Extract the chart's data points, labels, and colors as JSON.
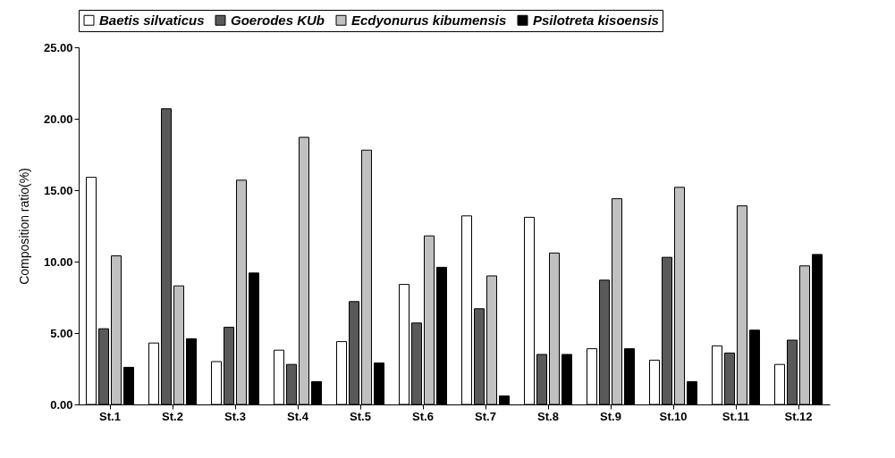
{
  "chart_data": {
    "type": "bar",
    "ylabel": "Composition ratio(%)",
    "categories": [
      "St.1",
      "St.2",
      "St.3",
      "St.4",
      "St.5",
      "St.6",
      "St.7",
      "St.8",
      "St.9",
      "St.10",
      "St.11",
      "St.12"
    ],
    "series": [
      {
        "name": "Baetis silvaticus",
        "color": "#ffffff",
        "values": [
          15.9,
          4.3,
          3.0,
          3.8,
          4.4,
          8.4,
          13.2,
          13.1,
          3.9,
          3.1,
          4.1,
          2.8
        ]
      },
      {
        "name": "Goerodes KUb",
        "color": "#595959",
        "values": [
          5.3,
          20.7,
          5.4,
          2.8,
          7.2,
          5.7,
          6.7,
          3.5,
          8.7,
          10.3,
          3.6,
          4.5
        ]
      },
      {
        "name": "Ecdyonurus kibumensis",
        "color": "#c0c0c0",
        "values": [
          10.4,
          8.3,
          15.7,
          18.7,
          17.8,
          11.8,
          9.0,
          10.6,
          14.4,
          15.2,
          13.9,
          9.7
        ]
      },
      {
        "name": "Psilotreta kisoensis",
        "color": "#000000",
        "values": [
          2.6,
          4.6,
          9.2,
          1.6,
          2.9,
          9.6,
          0.6,
          3.5,
          3.9,
          1.6,
          5.2,
          10.5
        ]
      }
    ],
    "ylim": [
      0,
      25
    ],
    "yticks": [
      {
        "value": 0,
        "label": "0.00"
      },
      {
        "value": 5,
        "label": "5.00"
      },
      {
        "value": 10,
        "label": "10.00"
      },
      {
        "value": 15,
        "label": "15.00"
      },
      {
        "value": 20,
        "label": "20.00"
      },
      {
        "value": 25,
        "label": "25.00"
      }
    ],
    "grid": false,
    "legend": "top"
  }
}
